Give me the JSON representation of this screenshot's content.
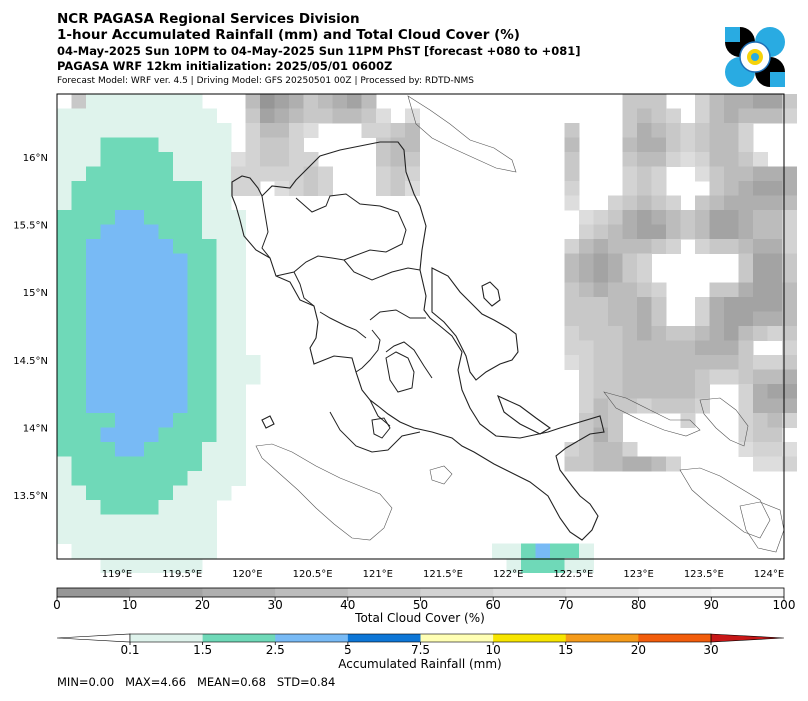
{
  "header": {
    "org": "NCR PAGASA Regional Services Division",
    "title": "1-hour Accumulated Rainfall (mm) and Total Cloud Cover (%)",
    "period": "04-May-2025 Sun 10PM to 04-May-2025 Sun 11PM PhST [forecast +080 to +081]",
    "init": "PAGASA WRF 12km initialization: 2025/05/01 0600Z",
    "model": "Forecast Model: WRF ver. 4.5 | Driving Model: GFS 20250501 00Z | Processed by: RDTD-NMS"
  },
  "logo": {
    "name": "pagasa-logo",
    "colors": [
      "#000000",
      "#29abe2",
      "#f5d20a"
    ]
  },
  "map": {
    "lon_ticks": [
      "119°E",
      "119.5°E",
      "120°E",
      "120.5°E",
      "121°E",
      "121.5°E",
      "122°E",
      "122.5°E",
      "123°E",
      "123.5°E",
      "124°E"
    ],
    "lat_ticks": [
      "16°N",
      "15.5°N",
      "15°N",
      "14.5°N",
      "14°N",
      "13.5°N"
    ]
  },
  "cloud_bar": {
    "label": "Total Cloud Cover (%)",
    "ticks": [
      "0",
      "10",
      "20",
      "30",
      "40",
      "50",
      "60",
      "70",
      "80",
      "90",
      "100"
    ],
    "colors": [
      "#969696",
      "#a3a3a3",
      "#afafaf",
      "#bcbcbc",
      "#c8c8c8",
      "#d3d3d3",
      "#dddddd",
      "#e6e6e6",
      "#efefef",
      "#f7f7f7"
    ]
  },
  "rain_bar": {
    "label": "Accumulated Rainfall (mm)",
    "ticks": [
      "0.1",
      "1.5",
      "2.5",
      "5",
      "7.5",
      "10",
      "15",
      "20",
      "30"
    ],
    "colors": [
      "#ffffff",
      "#dff3ec",
      "#6fd9b8",
      "#78baf5",
      "#0d76d6",
      "#ffffb4",
      "#f7e500",
      "#f59b1a",
      "#f25d0c",
      "#c71717"
    ]
  },
  "stats": {
    "text": "MIN=0.00   MAX=4.66   MEAN=0.68   STD=0.84"
  }
}
